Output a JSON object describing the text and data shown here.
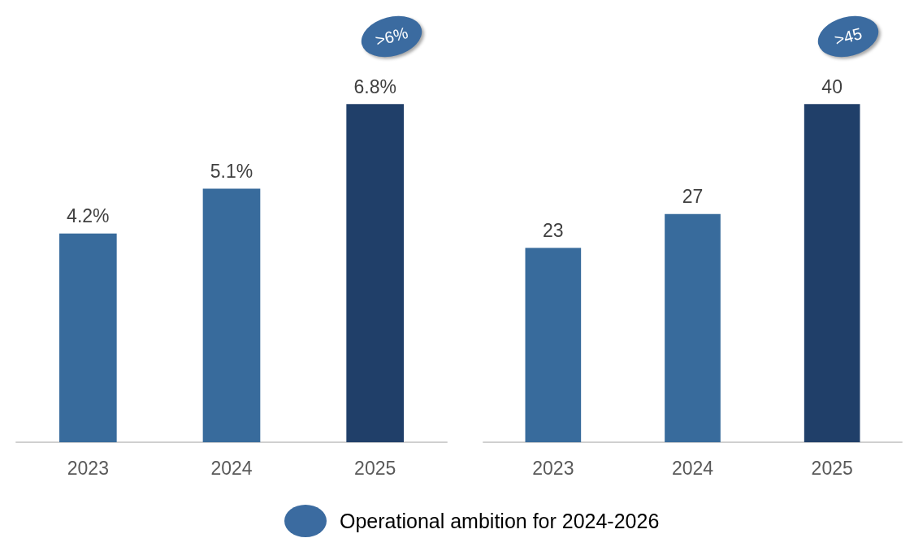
{
  "chart_data": [
    {
      "type": "bar",
      "categories": [
        "2023",
        "2024",
        "2025"
      ],
      "values": [
        4.2,
        5.1,
        6.8
      ],
      "value_labels": [
        "4.2%",
        "5.1%",
        "6.8%"
      ],
      "colors": [
        "#386b9c",
        "#386b9c",
        "#203f69"
      ],
      "annotations": [
        ">6%"
      ]
    },
    {
      "type": "bar",
      "categories": [
        "2023",
        "2024",
        "2025"
      ],
      "values": [
        23,
        27,
        40
      ],
      "data_labels": true,
      "colors": [
        "#386b9c",
        "#386b9c",
        "#203f69"
      ],
      "annotations": [
        ">45",
        "Operational ambition for 2024-2026"
      ]
    }
  ]
}
